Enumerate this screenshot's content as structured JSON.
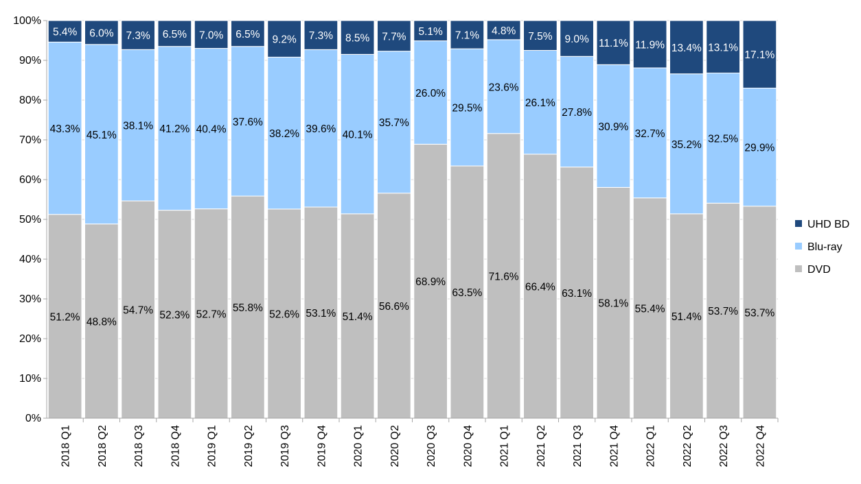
{
  "chart_data": {
    "type": "bar",
    "stacked": true,
    "normalized": true,
    "title": "",
    "xlabel": "",
    "ylabel": "",
    "ylim": [
      0,
      100
    ],
    "yticks": [
      "0%",
      "10%",
      "20%",
      "30%",
      "40%",
      "50%",
      "60%",
      "70%",
      "80%",
      "90%",
      "100%"
    ],
    "grid": true,
    "legend_position": "right",
    "categories": [
      "2018 Q1",
      "2018 Q2",
      "2018 Q3",
      "2018 Q4",
      "2019 Q1",
      "2019 Q2",
      "2019 Q3",
      "2019 Q4",
      "2020 Q1",
      "2020 Q2",
      "2020 Q3",
      "2020 Q4",
      "2021 Q1",
      "2021 Q2",
      "2021 Q3",
      "2021 Q4",
      "2022 Q1",
      "2022 Q2",
      "2022 Q3",
      "2022 Q4"
    ],
    "series": [
      {
        "name": "DVD",
        "color": "#bfbfbf",
        "label_color": "#000000",
        "values": [
          51.2,
          48.8,
          54.7,
          52.3,
          52.7,
          55.8,
          52.6,
          53.1,
          51.4,
          56.6,
          68.9,
          63.5,
          71.6,
          66.4,
          63.1,
          58.1,
          55.4,
          51.4,
          53.7,
          53.7
        ],
        "labels": [
          "51.2%",
          "48.8%",
          "54.7%",
          "52.3%",
          "52.7%",
          "55.8%",
          "52.6%",
          "53.1%",
          "51.4%",
          "56.6%",
          "68.9%",
          "63.5%",
          "71.6%",
          "66.4%",
          "63.1%",
          "58.1%",
          "55.4%",
          "51.4%",
          "53.7%",
          "53.7%"
        ]
      },
      {
        "name": "Blu-ray",
        "color": "#99ccff",
        "label_color": "#000000",
        "values": [
          43.3,
          45.1,
          38.1,
          41.2,
          40.4,
          37.6,
          38.2,
          39.6,
          40.1,
          35.7,
          26.0,
          29.5,
          23.6,
          26.1,
          27.8,
          30.9,
          32.7,
          35.2,
          32.5,
          29.9
        ],
        "labels": [
          "43.3%",
          "45.1%",
          "38.1%",
          "41.2%",
          "40.4%",
          "37.6%",
          "38.2%",
          "39.6%",
          "40.1%",
          "35.7%",
          "26.0%",
          "29.5%",
          "23.6%",
          "26.1%",
          "27.8%",
          "30.9%",
          "32.7%",
          "35.2%",
          "32.5%",
          "29.9%"
        ]
      },
      {
        "name": "UHD BD",
        "color": "#1f497d",
        "label_color": "#ffffff",
        "values": [
          5.4,
          6.0,
          7.3,
          6.5,
          7.0,
          6.5,
          9.2,
          7.3,
          8.5,
          7.7,
          5.1,
          7.1,
          4.8,
          7.5,
          9.0,
          11.1,
          11.9,
          13.4,
          13.1,
          17.1
        ],
        "labels": [
          "5.4%",
          "6.0%",
          "7.3%",
          "6.5%",
          "7.0%",
          "6.5%",
          "9.2%",
          "7.3%",
          "8.5%",
          "7.7%",
          "5.1%",
          "7.1%",
          "4.8%",
          "7.5%",
          "9.0%",
          "11.1%",
          "11.9%",
          "13.4%",
          "13.1%",
          "17.1%"
        ]
      }
    ],
    "legend": [
      "UHD BD",
      "Blu-ray",
      "DVD"
    ]
  }
}
